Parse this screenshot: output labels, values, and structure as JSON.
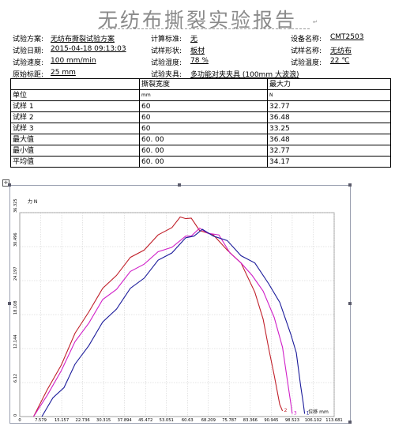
{
  "report": {
    "title": "无纺布撕裂实验报告",
    "mark": "↵"
  },
  "info_rows": [
    [
      {
        "label": "试验方案:",
        "value": "无纺布撕裂试验方案"
      },
      {
        "label": "计算标准:",
        "value": "无"
      },
      {
        "label": "设备名称:",
        "value": "CMT2503"
      }
    ],
    [
      {
        "label": "试验日期:",
        "value": "2015-04-18 09:13:03"
      },
      {
        "label": "试样形状:",
        "value": "板材"
      },
      {
        "label": "试样名称:",
        "value": "无纺布"
      }
    ],
    [
      {
        "label": "试验速度:",
        "value": "100 mm/min"
      },
      {
        "label": "试验湿度:",
        "value": "78 %"
      },
      {
        "label": "试验温度:",
        "value": "22 ℃"
      }
    ],
    [
      {
        "label": "原始标距:",
        "value": "25 mm"
      },
      {
        "label": "试验夹具:",
        "value": "多功能对夹夹具 (100mm 大波浪)"
      }
    ]
  ],
  "results": {
    "header": [
      "",
      "撕裂宽度",
      "最大力"
    ],
    "units": [
      "单位",
      "mm",
      "N"
    ],
    "rows": [
      [
        "试样 1",
        "60",
        "32.77"
      ],
      [
        "试样 2",
        "60",
        "36.48"
      ],
      [
        "试样 3",
        "60",
        "33.25"
      ],
      [
        "最大值",
        "60. 00",
        "36.48"
      ],
      [
        "最小值",
        "60. 00",
        "32.77"
      ],
      [
        "平均值",
        "60. 00",
        "34.17"
      ]
    ]
  },
  "chart_data": {
    "type": "line",
    "ylabel": "力 N",
    "xlabel": "位移 mm",
    "y_ticks": [
      "0",
      "6.12",
      "12.144",
      "18.108",
      "24.197",
      "30.496",
      "36.325"
    ],
    "x_ticks": [
      "0",
      "7.579",
      "15.157",
      "22.736",
      "30.315",
      "37.894",
      "45.472",
      "53.051",
      "60.63",
      "68.209",
      "75.787",
      "83.366",
      "90.945",
      "98.523",
      "106.102",
      "113.681"
    ],
    "xlim": [
      0,
      113.681
    ],
    "ylim": [
      0,
      36.325
    ],
    "grid": true,
    "end_labels": [
      "2",
      "3",
      "1"
    ],
    "series": [
      {
        "color": "#c0202a",
        "points": [
          [
            5,
            0
          ],
          [
            10,
            4.5
          ],
          [
            15,
            9.5
          ],
          [
            20,
            14.5
          ],
          [
            25,
            19
          ],
          [
            30,
            22.5
          ],
          [
            35,
            25.5
          ],
          [
            40,
            28
          ],
          [
            45,
            30
          ],
          [
            50,
            32
          ],
          [
            55,
            34
          ],
          [
            58,
            35.2
          ],
          [
            60,
            35.6
          ],
          [
            62,
            35
          ],
          [
            65,
            33.5
          ],
          [
            70,
            32
          ],
          [
            75,
            30
          ],
          [
            80,
            27
          ],
          [
            85,
            22.5
          ],
          [
            88,
            17
          ],
          [
            90,
            12.5
          ],
          [
            92,
            7
          ],
          [
            94,
            2.5
          ],
          [
            95,
            1
          ]
        ]
      },
      {
        "color": "#d020c8",
        "points": [
          [
            5,
            0
          ],
          [
            10,
            3.5
          ],
          [
            15,
            8.5
          ],
          [
            20,
            13
          ],
          [
            25,
            17
          ],
          [
            30,
            20.5
          ],
          [
            35,
            23
          ],
          [
            40,
            25.5
          ],
          [
            45,
            27.5
          ],
          [
            50,
            29
          ],
          [
            55,
            30.5
          ],
          [
            60,
            31.8
          ],
          [
            62,
            32.5
          ],
          [
            65,
            33.2
          ],
          [
            68,
            33
          ],
          [
            72,
            32
          ],
          [
            76,
            29.5
          ],
          [
            80,
            27
          ],
          [
            84,
            25.5
          ],
          [
            88,
            22
          ],
          [
            92,
            18
          ],
          [
            95,
            12
          ],
          [
            97,
            6
          ],
          [
            98,
            2
          ],
          [
            98.5,
            0.5
          ]
        ]
      },
      {
        "color": "#1a1a9a",
        "points": [
          [
            8,
            0
          ],
          [
            12,
            3
          ],
          [
            16,
            5.5
          ],
          [
            20,
            9
          ],
          [
            25,
            13
          ],
          [
            30,
            16.5
          ],
          [
            35,
            19.5
          ],
          [
            40,
            22.5
          ],
          [
            45,
            25
          ],
          [
            50,
            27.5
          ],
          [
            55,
            29.5
          ],
          [
            60,
            31.5
          ],
          [
            63,
            32.5
          ],
          [
            66,
            33
          ],
          [
            70,
            32.5
          ],
          [
            75,
            31
          ],
          [
            80,
            29
          ],
          [
            85,
            27
          ],
          [
            90,
            24
          ],
          [
            94,
            20
          ],
          [
            98,
            15
          ],
          [
            100,
            11
          ],
          [
            101.5,
            6
          ],
          [
            102.5,
            2
          ],
          [
            103,
            0.5
          ]
        ]
      }
    ]
  }
}
